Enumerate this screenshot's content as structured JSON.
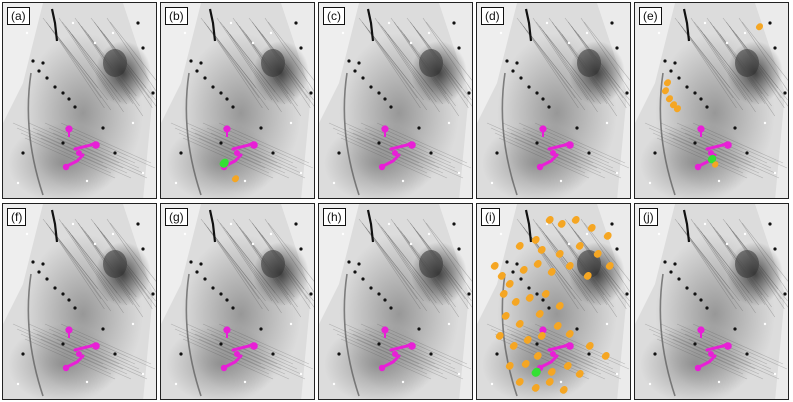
{
  "figure": {
    "panels": [
      {
        "label": "(a)",
        "overlay": "base"
      },
      {
        "label": "(b)",
        "overlay": "b"
      },
      {
        "label": "(c)",
        "overlay": "base"
      },
      {
        "label": "(d)",
        "overlay": "base"
      },
      {
        "label": "(e)",
        "overlay": "e"
      },
      {
        "label": "(f)",
        "overlay": "base"
      },
      {
        "label": "(g)",
        "overlay": "base"
      },
      {
        "label": "(h)",
        "overlay": "base"
      },
      {
        "label": "(i)",
        "overlay": "i"
      },
      {
        "label": "(j)",
        "overlay": "base"
      }
    ],
    "colors": {
      "magenta": "#e81fd6",
      "orange": "#f5a623",
      "green": "#33e033",
      "tissue_dark": "#1a1a1a",
      "background": "#d9d9d9"
    }
  }
}
